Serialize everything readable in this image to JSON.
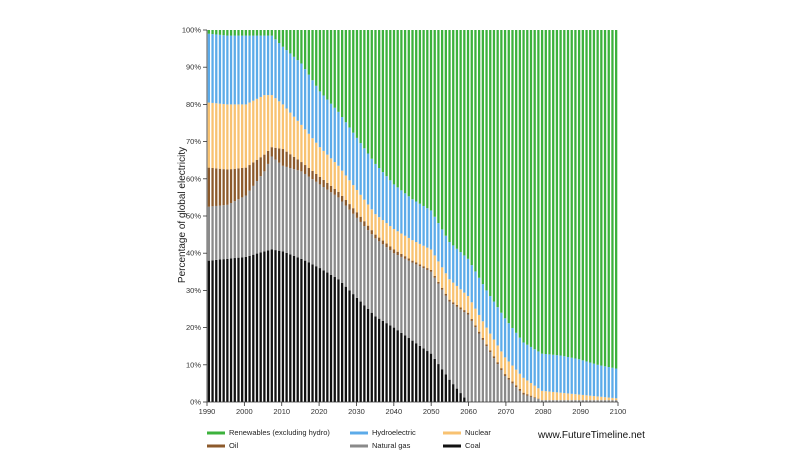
{
  "chart_data": {
    "type": "bar",
    "stacked": true,
    "percent_axis": true,
    "title": "",
    "xlabel": "",
    "ylabel": "Percentage of global electricity",
    "x_ticks": [
      "1990",
      "2000",
      "2010",
      "2020",
      "2030",
      "2040",
      "2050",
      "2060",
      "2070",
      "2080",
      "2090",
      "2100"
    ],
    "y_ticks": [
      "0%",
      "10%",
      "20%",
      "30%",
      "40%",
      "50%",
      "60%",
      "70%",
      "80%",
      "90%",
      "100%"
    ],
    "xlim": [
      1990,
      2100
    ],
    "ylim": [
      0,
      100
    ],
    "grid": false,
    "legend_position": "bottom",
    "credit": "www.FutureTimeline.net",
    "x": [
      1990,
      1995,
      2000,
      2005,
      2007,
      2010,
      2015,
      2020,
      2025,
      2030,
      2035,
      2040,
      2045,
      2050,
      2055,
      2060,
      2065,
      2070,
      2075,
      2080,
      2085,
      2090,
      2095,
      2100
    ],
    "series": [
      {
        "name": "Coal",
        "color": "#111111",
        "values": [
          38,
          38.5,
          39,
          40.5,
          41,
          40.5,
          38.5,
          36,
          33,
          28,
          23,
          20,
          16.5,
          13,
          6,
          0,
          0,
          0,
          0,
          0,
          0,
          0,
          0,
          0
        ]
      },
      {
        "name": "Natural gas",
        "color": "#8a8a8a",
        "values": [
          14.5,
          14.5,
          16.5,
          21.5,
          25,
          23,
          23.5,
          22.5,
          22,
          21.5,
          21,
          20,
          21,
          22,
          21,
          23.5,
          15,
          7,
          2,
          0.5,
          0.5,
          0.5,
          0.5,
          0.5
        ]
      },
      {
        "name": "Oil",
        "color": "#8c5a2b",
        "values": [
          10.5,
          9.5,
          7.5,
          4.5,
          2.5,
          4.5,
          2.5,
          2,
          1.5,
          1.5,
          1,
          1,
          0.5,
          0.5,
          0.5,
          0.5,
          0.5,
          0.5,
          0.5,
          0,
          0,
          0,
          0,
          0
        ]
      },
      {
        "name": "Nuclear",
        "color": "#f8c271",
        "values": [
          17.5,
          17.5,
          17,
          16,
          14,
          12,
          10,
          8,
          7,
          6,
          5.5,
          5.5,
          5.5,
          5.5,
          5.5,
          4.5,
          4.5,
          4.5,
          4,
          2.5,
          2,
          1.5,
          1,
          0.5
        ]
      },
      {
        "name": "Hydroelectric",
        "color": "#5cabe9",
        "values": [
          18.5,
          18.5,
          18.5,
          16,
          16,
          15.5,
          16.5,
          15,
          14.5,
          14,
          13.5,
          12,
          11,
          10.5,
          10,
          10,
          10,
          10.5,
          9.5,
          10,
          10,
          9.5,
          8.5,
          8
        ]
      },
      {
        "name": "Renewables (excluding hydro)",
        "color": "#3cb23c",
        "values": [
          1,
          1.5,
          1.5,
          1.5,
          1.5,
          4.5,
          9,
          16.5,
          22,
          29,
          36,
          41.5,
          45.5,
          48.5,
          57,
          61.5,
          70,
          77.5,
          84,
          87,
          87.5,
          88.5,
          90,
          91
        ]
      }
    ],
    "legend_rows": [
      [
        "Renewables (excluding hydro)",
        "Hydroelectric",
        "Nuclear"
      ],
      [
        "Oil",
        "Natural gas",
        "Coal"
      ]
    ]
  }
}
